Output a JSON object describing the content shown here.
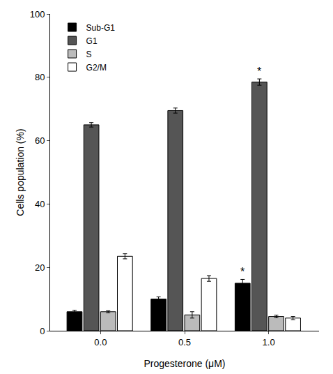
{
  "chart_data": {
    "type": "bar",
    "x_label": "Progesterone (μM)",
    "y_label": "Cells population (%)",
    "categories": [
      "0.0",
      "0.5",
      "1.0"
    ],
    "series": [
      {
        "name": "Sub-G1",
        "color": "#000000",
        "values": [
          6,
          10,
          15
        ],
        "errors": [
          0.5,
          0.7,
          1.2
        ]
      },
      {
        "name": "G1",
        "color": "#555555",
        "values": [
          65,
          69.5,
          78.5
        ],
        "errors": [
          0.7,
          0.8,
          1.0
        ]
      },
      {
        "name": "S",
        "color": "#bbbbbb",
        "values": [
          6,
          5,
          4.5
        ],
        "errors": [
          0.3,
          1.0,
          0.4
        ]
      },
      {
        "name": "G2/M",
        "color": "#ffffff",
        "values": [
          23.5,
          16.5,
          4
        ],
        "errors": [
          0.8,
          0.9,
          0.5
        ]
      }
    ],
    "annotations": [
      {
        "text": "*",
        "category": "1.0",
        "series": "Sub-G1"
      },
      {
        "text": "*",
        "category": "1.0",
        "series": "G1"
      }
    ],
    "ylim": [
      0,
      100
    ],
    "yticks": [
      0,
      20,
      40,
      60,
      80,
      100
    ],
    "grid": false,
    "legend": "top-left"
  }
}
